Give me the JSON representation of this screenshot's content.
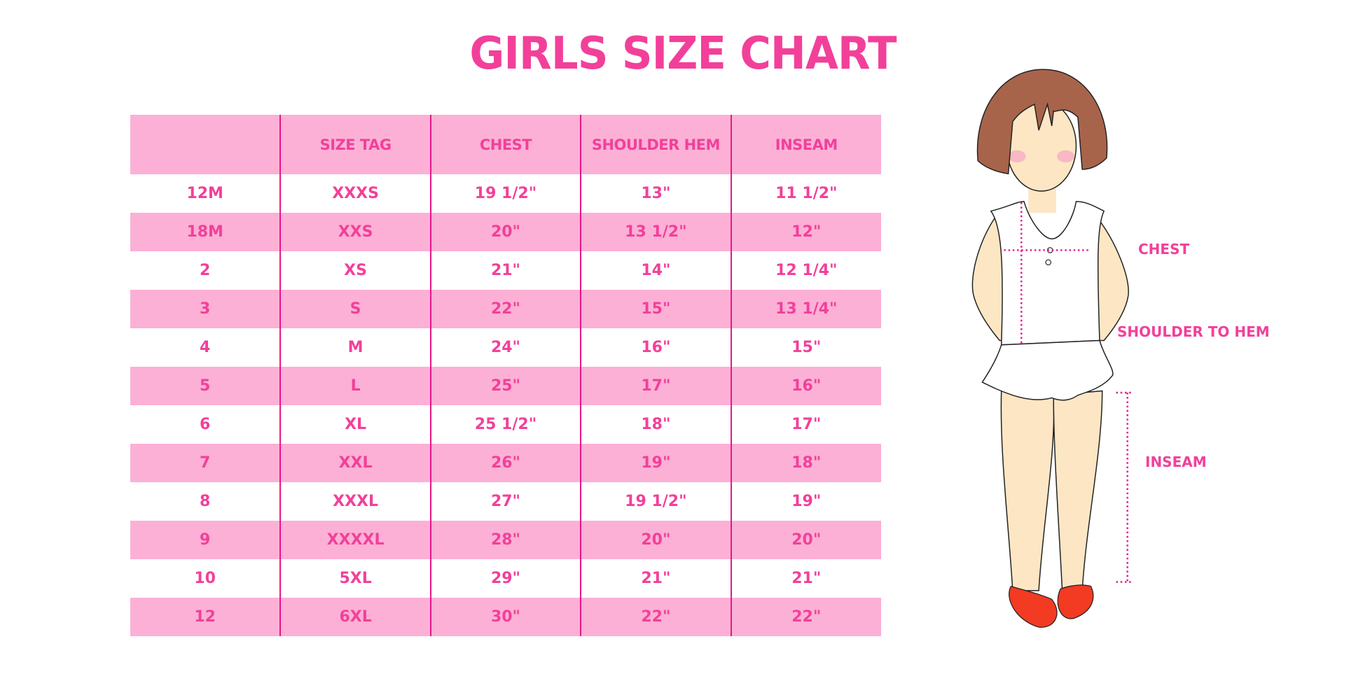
{
  "title": "GIRLS SIZE CHART",
  "table": {
    "headers": [
      "",
      "SIZE TAG",
      "CHEST",
      "SHOULDER HEM",
      "INSEAM"
    ],
    "rows": [
      [
        "12M",
        "XXXS",
        "19 1/2\"",
        "13\"",
        "11 1/2\""
      ],
      [
        "18M",
        "XXS",
        "20\"",
        "13 1/2\"",
        "12\""
      ],
      [
        "2",
        "XS",
        "21\"",
        "14\"",
        "12 1/4\""
      ],
      [
        "3",
        "S",
        "22\"",
        "15\"",
        "13 1/4\""
      ],
      [
        "4",
        "M",
        "24\"",
        "16\"",
        "15\""
      ],
      [
        "5",
        "L",
        "25\"",
        "17\"",
        "16\""
      ],
      [
        "6",
        "XL",
        "25 1/2\"",
        "18\"",
        "17\""
      ],
      [
        "7",
        "XXL",
        "26\"",
        "19\"",
        "18\""
      ],
      [
        "8",
        "XXXL",
        "27\"",
        "19 1/2\"",
        "19\""
      ],
      [
        "9",
        "XXXXL",
        "28\"",
        "20\"",
        "20\""
      ],
      [
        "10",
        "5XL",
        "29\"",
        "21\"",
        "21\""
      ],
      [
        "12",
        "6XL",
        "30\"",
        "22\"",
        "22\""
      ]
    ]
  },
  "figure": {
    "labels": {
      "chest": "CHEST",
      "shoulder_to_hem": "SHOULDER TO HEM",
      "inseam": "INSEAM"
    }
  },
  "colors": {
    "accent": "#f2409a",
    "row_pink": "#fcb0d5",
    "divider": "#e8168a"
  }
}
